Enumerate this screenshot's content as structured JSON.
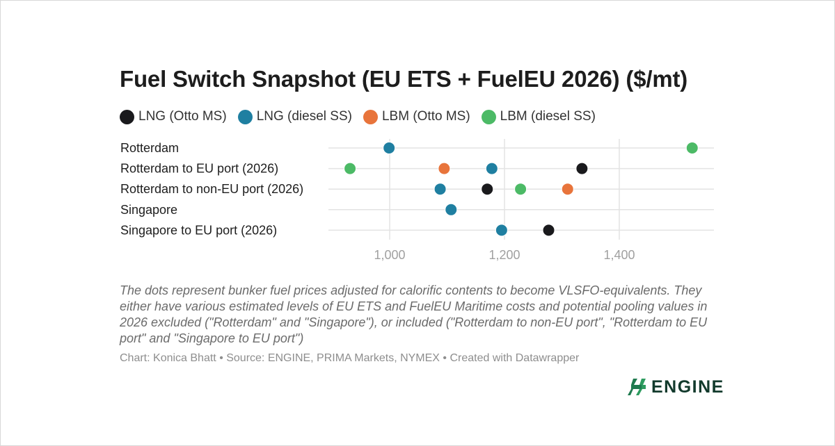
{
  "title": "Fuel Switch Snapshot (EU ETS + FuelEU 2026) ($/mt)",
  "notes": "The dots represent bunker fuel prices adjusted for calorific contents to become VLSFO-equivalents. They either have various estimated levels of EU ETS and FuelEU Maritime costs and potential pooling values in 2026 excluded (\"Rotterdam\" and \"Singapore\"), or included (\"Rotterdam to non-EU port\", \"Rotterdam to EU port\" and \"Singapore to EU port\")",
  "credit": "Chart: Konica Bhatt • Source: ENGINE, PRIMA Markets, NYMEX • Created with Datawrapper",
  "logo": {
    "text": "ENGINE",
    "icon": "engine-logo-icon",
    "color": "#1f7a4f"
  },
  "chart_data": {
    "type": "scatter",
    "categories": [
      "Rotterdam",
      "Rotterdam to EU port (2026)",
      "Rotterdam to non-EU port (2026)",
      "Singapore",
      "Singapore to EU port (2026)"
    ],
    "xlim": [
      890,
      1560
    ],
    "xticks": [
      1000,
      1200,
      1400
    ],
    "xtick_labels": [
      "1,000",
      "1,200",
      "1,400"
    ],
    "grid": true,
    "legend_position": "top",
    "series": [
      {
        "name": "LNG (Otto MS)",
        "color": "#1a1a1d",
        "values": [
          null,
          1335,
          1170,
          null,
          1277
        ]
      },
      {
        "name": "LNG (diesel SS)",
        "color": "#1f7fa1",
        "values": [
          999,
          1178,
          1088,
          1107,
          1195
        ]
      },
      {
        "name": "LBM (Otto MS)",
        "color": "#e8743b",
        "values": [
          null,
          1095,
          null,
          null,
          null
        ]
      },
      {
        "name": "LBM (diesel SS)",
        "color": "#4cba66",
        "values": [
          1527,
          931,
          1228,
          null,
          null
        ]
      }
    ],
    "extra_points": [
      {
        "series": "LBM (Otto MS)",
        "category": "Rotterdam to non-EU port (2026)",
        "value": 1310
      }
    ]
  }
}
